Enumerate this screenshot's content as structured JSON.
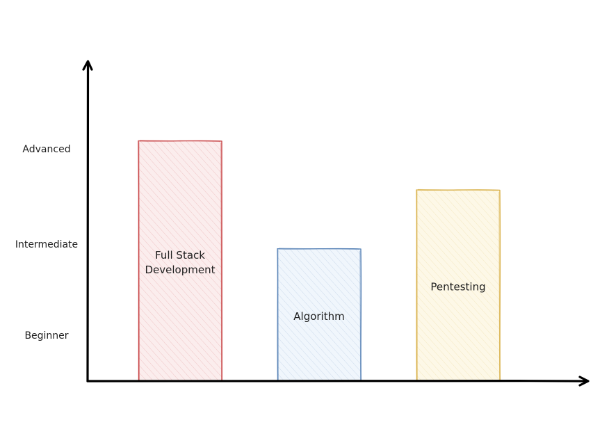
{
  "chart_data": {
    "type": "bar",
    "title": "",
    "xlabel": "",
    "ylabel": "",
    "y_levels": [
      "Beginner",
      "Intermediate",
      "Advanced"
    ],
    "categories": [
      {
        "label_lines": [
          "Full Stack",
          "Development"
        ],
        "color": "#c9484a",
        "fill": "#f8dede"
      },
      {
        "label_lines": [
          "Algorithm"
        ],
        "color": "#5b85b8",
        "fill": "#e3eef9"
      },
      {
        "label_lines": [
          "Pentesting"
        ],
        "color": "#d9b14a",
        "fill": "#fbf2d2"
      }
    ],
    "values": [
      2.45,
      1.35,
      1.95
    ],
    "ylim": [
      0,
      3.2
    ],
    "grid": false,
    "legend": "none",
    "style": "hand-drawn hachure"
  }
}
